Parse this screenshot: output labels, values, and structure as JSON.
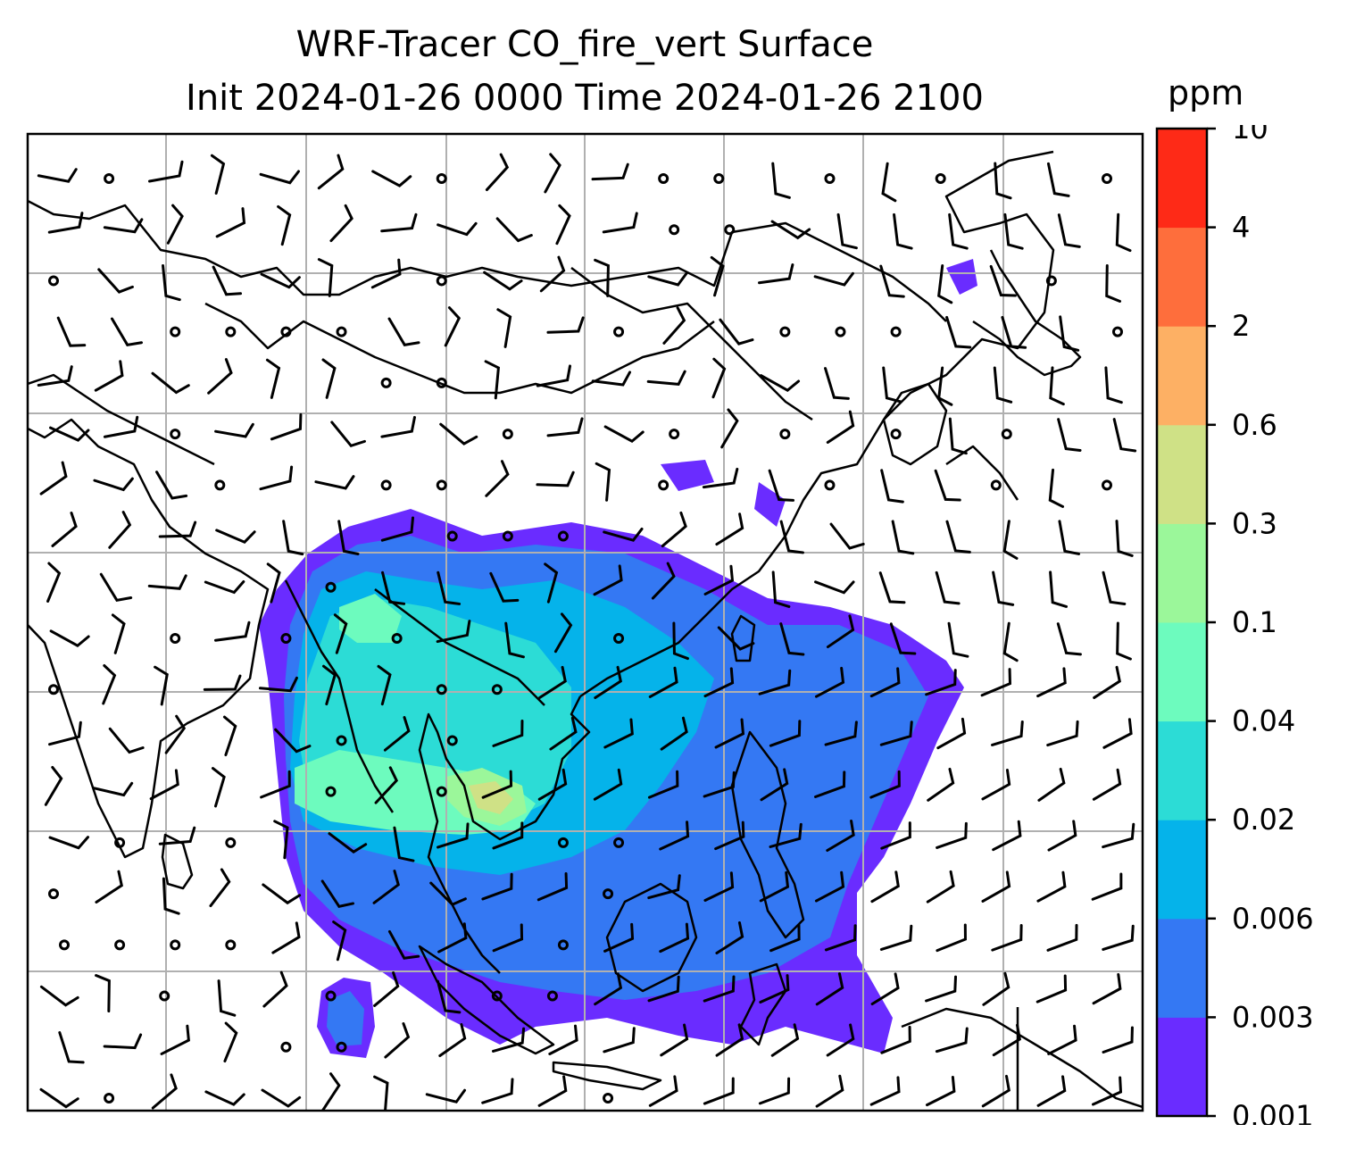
{
  "title": {
    "line1": "WRF-Tracer CO_fire_vert Surface",
    "line2": "Init 2024-01-26 0000 Time 2024-01-26 2100"
  },
  "colorbar": {
    "units": "ppm",
    "levels": [
      "0.001",
      "0.003",
      "0.006",
      "0.02",
      "0.04",
      "0.1",
      "0.3",
      "0.6",
      "2",
      "4",
      "10"
    ],
    "colors": [
      "#6a2cff",
      "#3478f3",
      "#05b3ea",
      "#2cdcd6",
      "#6dfbbe",
      "#9bf79a",
      "#cfe186",
      "#fdb064",
      "#fe6e3c",
      "#fe2a17"
    ]
  },
  "map": {
    "field_colors": {
      "level1": "#6a2cff",
      "level2": "#3478f3",
      "level3": "#05b3ea",
      "level4": "#2cdcd6",
      "level5": "#6dfbbe",
      "level6": "#9bf79a",
      "level7": "#cfe186"
    },
    "gridline_color": "#b0b0b0",
    "coastline_color": "#000000"
  }
}
